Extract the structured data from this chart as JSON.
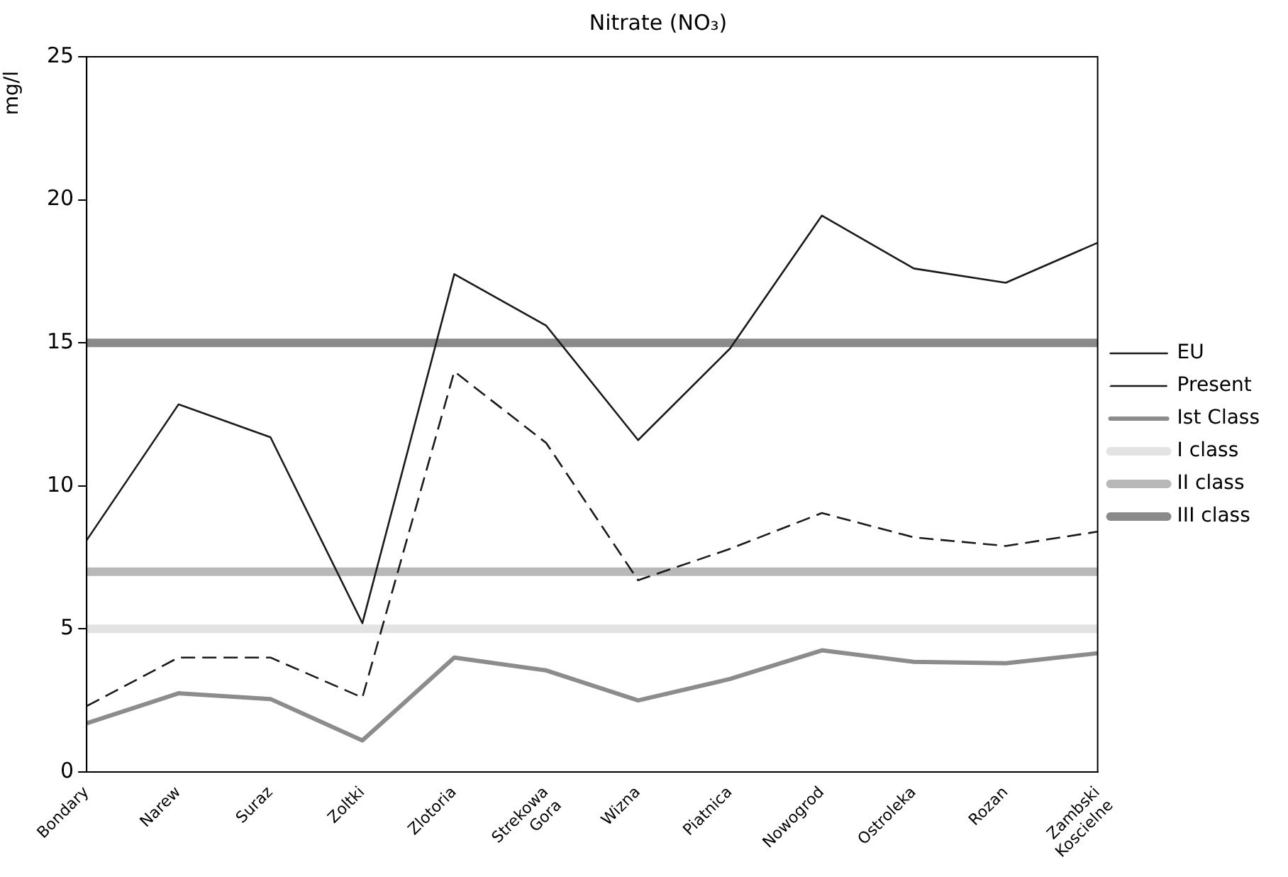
{
  "chart_data": {
    "type": "line",
    "title": "Nitrate (NO₃)",
    "ylabel": "mg/l",
    "categories": [
      "Bondary",
      "Narew",
      "Suraz",
      "Zoltki",
      "Zlotoria",
      "Strekowa Gora",
      "Wizna",
      "Piatnica",
      "Nowogrod",
      "Ostroleka",
      "Rozan",
      "Zambski Koscielne"
    ],
    "series": [
      {
        "name": "EU",
        "color": "#1a1a1a",
        "line_style": "solid",
        "values": [
          8.1,
          12.85,
          11.7,
          5.2,
          17.4,
          15.6,
          11.6,
          14.8,
          19.45,
          17.6,
          17.1,
          18.5
        ]
      },
      {
        "name": "Present",
        "color": "#1a1a1a",
        "line_style": "dashed",
        "values": [
          2.3,
          4.0,
          4.0,
          2.6,
          14.0,
          11.5,
          6.7,
          7.8,
          9.05,
          8.2,
          7.9,
          8.4
        ]
      },
      {
        "name": "Ist Class",
        "color": "#8c8c8c",
        "line_style": "solid",
        "values": [
          1.7,
          2.75,
          2.55,
          1.1,
          4.0,
          3.55,
          2.5,
          3.25,
          4.25,
          3.85,
          3.8,
          4.15
        ]
      },
      {
        "name": "I class",
        "color": "#e3e3e3",
        "line_style": "solid",
        "values": [
          5,
          5,
          5,
          5,
          5,
          5,
          5,
          5,
          5,
          5,
          5,
          5
        ]
      },
      {
        "name": "II class",
        "color": "#b8b8b8",
        "line_style": "solid",
        "values": [
          7,
          7,
          7,
          7,
          7,
          7,
          7,
          7,
          7,
          7,
          7,
          7
        ]
      },
      {
        "name": "III class",
        "color": "#8a8a8a",
        "line_style": "solid",
        "values": [
          15,
          15,
          15,
          15,
          15,
          15,
          15,
          15,
          15,
          15,
          15,
          15
        ]
      }
    ],
    "ylim": [
      0,
      25
    ],
    "yticks": [
      0,
      5,
      10,
      15,
      20,
      25
    ],
    "grid": false,
    "legend": "right",
    "marker": "none"
  }
}
